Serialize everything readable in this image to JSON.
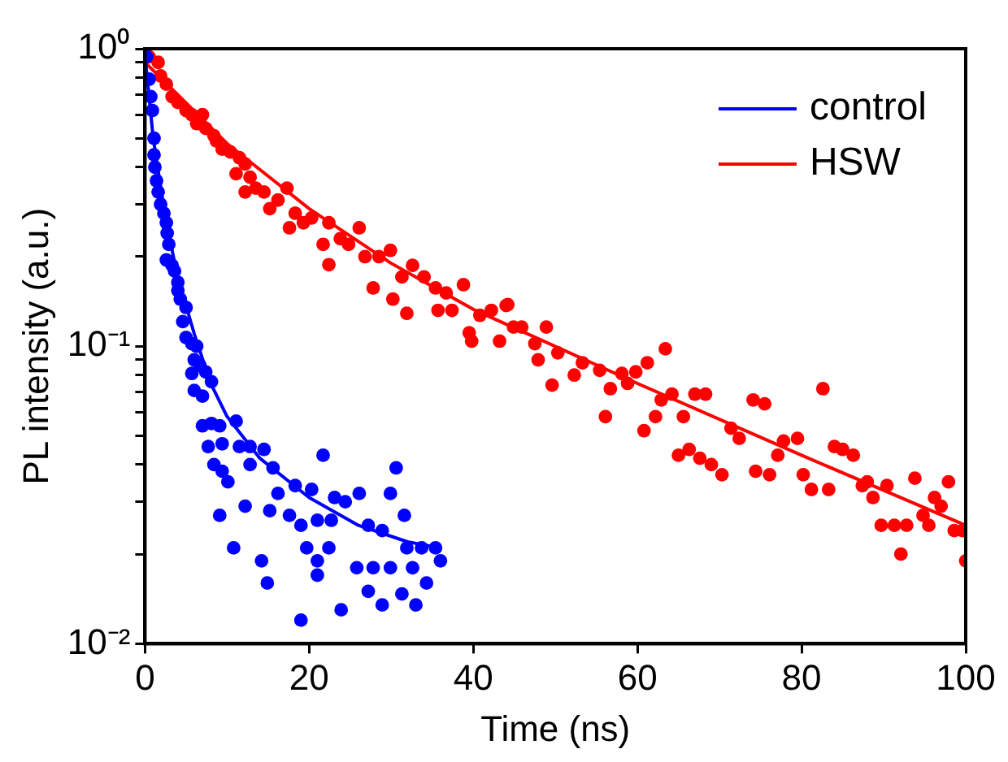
{
  "chart_data": {
    "type": "scatter",
    "xlabel": "Time (ns)",
    "ylabel": "PL intensity (a.u.)",
    "log": "y",
    "xlim": [
      0,
      100
    ],
    "xticks": [
      0,
      20,
      40,
      60,
      80,
      100
    ],
    "ylim": [
      0.01,
      1
    ],
    "yticks": [
      {
        "value": 0.01,
        "label": "10⁻²"
      },
      {
        "value": 0.02,
        "label": null
      },
      {
        "value": 0.03,
        "label": null
      },
      {
        "value": 0.04,
        "label": null
      },
      {
        "value": 0.05,
        "label": null
      },
      {
        "value": 0.06,
        "label": null
      },
      {
        "value": 0.07,
        "label": null
      },
      {
        "value": 0.08,
        "label": null
      },
      {
        "value": 0.09,
        "label": null
      },
      {
        "value": 0.1,
        "label": "10⁻¹"
      },
      {
        "value": 0.2,
        "label": null
      },
      {
        "value": 0.3,
        "label": null
      },
      {
        "value": 0.4,
        "label": null
      },
      {
        "value": 0.5,
        "label": null
      },
      {
        "value": 0.6,
        "label": null
      },
      {
        "value": 0.7,
        "label": null
      },
      {
        "value": 0.8,
        "label": null
      },
      {
        "value": 0.9,
        "label": null
      },
      {
        "value": 1,
        "label": "10⁰"
      }
    ],
    "grid": false,
    "legend": "top right",
    "marker": "circle",
    "line_style": "solid",
    "series": [
      {
        "color": "#0000ff",
        "x": [
          0.2,
          0.5,
          0.7,
          0.9,
          1.1,
          1.1,
          1.2,
          1.4,
          1.6,
          1.9,
          2.3,
          2.6,
          2.7,
          2.9,
          2.6,
          3.3,
          3.6,
          4.0,
          4.0,
          4.3,
          5.0,
          4.6,
          5.0,
          5.7,
          6.3,
          6.0,
          5.7,
          6.7,
          7.4,
          8.1,
          6.0,
          7.0,
          7.0,
          8.1,
          9.1,
          11.1,
          7.7,
          9.4,
          8.4,
          9.4,
          9.1,
          10.1,
          11.5,
          12.8,
          14.5,
          12.8,
          15.6,
          10.8,
          14.2,
          14.9,
          12.2,
          15.2,
          16.2,
          18.3,
          20.3,
          21.7,
          17.6,
          19.0,
          21.0,
          23.1,
          24.4,
          26.1,
          29.9,
          30.6,
          31.6,
          19.0,
          23.9,
          27.2,
          28.9,
          31.3,
          33.0,
          31.9,
          33.7,
          35.4,
          36.0,
          34.3,
          28.9,
          27.2,
          22.4,
          21.0,
          19.7,
          22.7,
          25.8,
          27.8,
          29.9,
          32.6,
          21.0
        ],
        "values": [
          0.94,
          0.79,
          0.69,
          0.62,
          0.5,
          0.44,
          0.4,
          0.36,
          0.33,
          0.3,
          0.28,
          0.26,
          0.24,
          0.22,
          0.195,
          0.187,
          0.179,
          0.164,
          0.154,
          0.144,
          0.135,
          0.121,
          0.107,
          0.102,
          0.1,
          0.09,
          0.081,
          0.086,
          0.082,
          0.076,
          0.071,
          0.068,
          0.054,
          0.055,
          0.054,
          0.056,
          0.046,
          0.047,
          0.04,
          0.038,
          0.027,
          0.035,
          0.046,
          0.046,
          0.045,
          0.04,
          0.039,
          0.021,
          0.019,
          0.016,
          0.029,
          0.028,
          0.032,
          0.034,
          0.033,
          0.043,
          0.027,
          0.025,
          0.026,
          0.031,
          0.03,
          0.032,
          0.032,
          0.039,
          0.027,
          0.012,
          0.013,
          0.015,
          0.0135,
          0.0147,
          0.0135,
          0.021,
          0.021,
          0.021,
          0.019,
          0.016,
          0.024,
          0.025,
          0.021,
          0.019,
          0.021,
          0.026,
          0.018,
          0.018,
          0.018,
          0.018,
          0.017
        ]
      },
      {
        "type": "line",
        "name": "control",
        "color": "#0000ff",
        "marker": "none",
        "x": [
          0,
          1,
          2,
          3,
          4,
          6,
          8,
          10,
          14,
          20,
          26,
          32,
          36
        ],
        "values": [
          0.95,
          0.5,
          0.33,
          0.23,
          0.17,
          0.11,
          0.075,
          0.058,
          0.042,
          0.031,
          0.025,
          0.022,
          0.021
        ]
      },
      {
        "color": "#ff0000",
        "x": [
          0.5,
          1.6,
          1.9,
          2.6,
          3.3,
          4.0,
          5.0,
          5.7,
          7.0,
          6.3,
          7.4,
          8.4,
          8.7,
          9.4,
          10.4,
          11.5,
          12.2,
          11.1,
          12.8,
          12.2,
          13.5,
          14.5,
          15.2,
          16.2,
          17.3,
          18.3,
          17.6,
          19.3,
          20.3,
          22.4,
          21.7,
          22.4,
          23.8,
          24.8,
          26.1,
          26.8,
          28.5,
          29.9,
          31.3,
          32.6,
          27.8,
          30.2,
          34.0,
          35.4,
          36.7,
          37.4,
          38.8,
          31.9,
          35.7,
          39.5,
          39.8,
          40.8,
          42.2,
          43.2,
          44.2,
          44.9,
          44.0,
          45.9,
          47.5,
          48.9,
          47.9,
          50.3,
          49.6,
          52.3,
          53.3,
          55.4,
          56.1,
          56.7,
          58.1,
          58.8,
          59.8,
          61.2,
          63.4,
          60.8,
          62.2,
          62.9,
          64.2,
          65.6,
          65.0,
          66.3,
          67.6,
          69.0,
          70.3,
          67.0,
          68.3,
          71.4,
          72.4,
          74.1,
          75.5,
          74.4,
          76.1,
          77.1,
          77.8,
          79.5,
          80.2,
          81.2,
          82.6,
          83.3,
          84.0,
          85.0,
          86.3,
          87.4,
          88.0,
          88.7,
          90.4,
          89.7,
          91.3,
          92.8,
          92.1,
          93.8,
          94.8,
          95.5,
          96.2,
          97.0,
          97.9,
          98.6,
          99.6,
          100
        ],
        "values": [
          0.94,
          0.9,
          0.81,
          0.76,
          0.69,
          0.66,
          0.62,
          0.6,
          0.6,
          0.56,
          0.54,
          0.51,
          0.49,
          0.46,
          0.45,
          0.43,
          0.41,
          0.38,
          0.37,
          0.33,
          0.34,
          0.33,
          0.29,
          0.31,
          0.34,
          0.28,
          0.25,
          0.26,
          0.27,
          0.26,
          0.22,
          0.188,
          0.23,
          0.22,
          0.25,
          0.2,
          0.2,
          0.21,
          0.171,
          0.187,
          0.157,
          0.144,
          0.171,
          0.157,
          0.151,
          0.132,
          0.161,
          0.129,
          0.132,
          0.111,
          0.104,
          0.127,
          0.132,
          0.104,
          0.138,
          0.116,
          0.137,
          0.116,
          0.102,
          0.116,
          0.09,
          0.095,
          0.074,
          0.08,
          0.088,
          0.083,
          0.058,
          0.072,
          0.081,
          0.075,
          0.082,
          0.088,
          0.098,
          0.052,
          0.058,
          0.066,
          0.069,
          0.058,
          0.043,
          0.045,
          0.042,
          0.04,
          0.037,
          0.069,
          0.069,
          0.053,
          0.049,
          0.066,
          0.064,
          0.038,
          0.037,
          0.043,
          0.048,
          0.049,
          0.037,
          0.033,
          0.072,
          0.033,
          0.046,
          0.045,
          0.043,
          0.034,
          0.035,
          0.031,
          0.034,
          0.025,
          0.025,
          0.025,
          0.02,
          0.036,
          0.027,
          0.025,
          0.031,
          0.029,
          0.035,
          0.024,
          0.024,
          0.019
        ]
      },
      {
        "type": "line",
        "name": "HSW",
        "color": "#ff0000",
        "marker": "none",
        "x": [
          0,
          10,
          20,
          30,
          40,
          60,
          80,
          100
        ],
        "values": [
          0.9,
          0.48,
          0.29,
          0.19,
          0.133,
          0.075,
          0.043,
          0.025
        ]
      }
    ]
  }
}
